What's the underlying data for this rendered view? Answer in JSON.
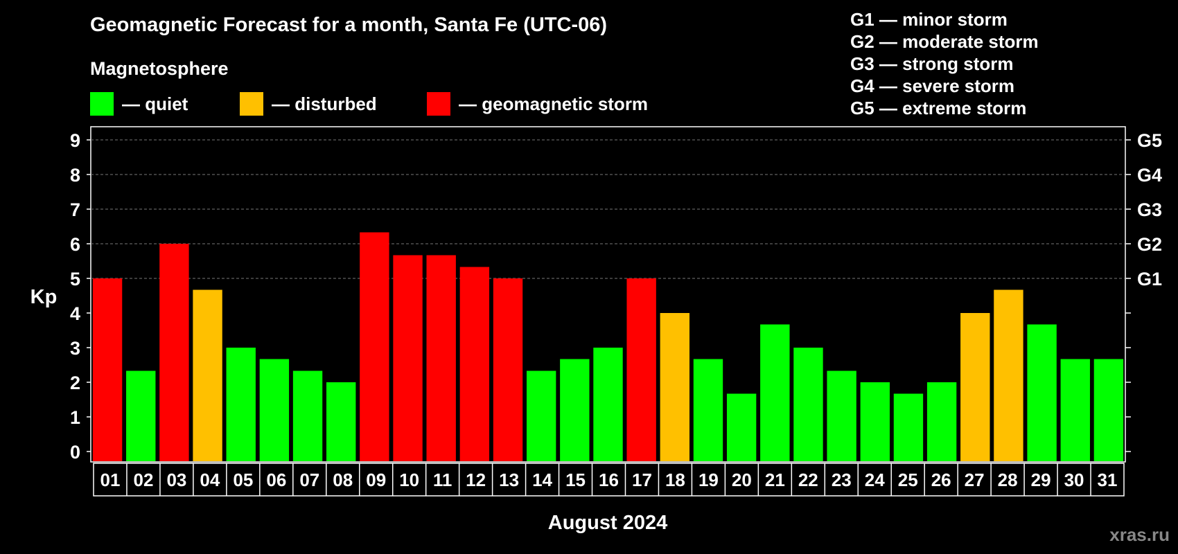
{
  "chart_data": {
    "type": "bar",
    "title": "Geomagnetic Forecast for a month, Santa Fe (UTC-06)",
    "subtitle": "Magnetosphere",
    "legend": [
      {
        "label": "— quiet",
        "color": "#00ff00"
      },
      {
        "label": "— disturbed",
        "color": "#ffc000"
      },
      {
        "label": "— geomagnetic storm",
        "color": "#ff0000"
      }
    ],
    "storm_scale": [
      "G1 — minor storm",
      "G2 — moderate storm",
      "G3 — strong storm",
      "G4 — severe storm",
      "G5 — extreme storm"
    ],
    "ylabel": "Kp",
    "xlabel": "August 2024",
    "ylim": [
      0,
      9
    ],
    "yticks": [
      "0",
      "1",
      "2",
      "3",
      "4",
      "5",
      "6",
      "7",
      "8",
      "9"
    ],
    "right_axis_labels": [
      {
        "value": 5,
        "label": "G1"
      },
      {
        "value": 6,
        "label": "G2"
      },
      {
        "value": 7,
        "label": "G3"
      },
      {
        "value": 8,
        "label": "G4"
      },
      {
        "value": 9,
        "label": "G5"
      }
    ],
    "grid": "horizontal dashed at 5-9",
    "categories": [
      "01",
      "02",
      "03",
      "04",
      "05",
      "06",
      "07",
      "08",
      "09",
      "10",
      "11",
      "12",
      "13",
      "14",
      "15",
      "16",
      "17",
      "18",
      "19",
      "20",
      "21",
      "22",
      "23",
      "24",
      "25",
      "26",
      "27",
      "28",
      "29",
      "30",
      "31"
    ],
    "values": [
      5,
      2.33,
      6,
      4.67,
      3,
      2.67,
      2.33,
      2,
      6.33,
      5.67,
      5.67,
      5.33,
      5,
      2.33,
      2.67,
      3,
      5,
      4,
      2.67,
      1.67,
      3.67,
      3,
      2.33,
      2,
      1.67,
      2,
      4,
      4.67,
      3.67,
      2.67,
      2.67
    ],
    "bar_status": [
      "storm",
      "quiet",
      "storm",
      "disturbed",
      "quiet",
      "quiet",
      "quiet",
      "quiet",
      "storm",
      "storm",
      "storm",
      "storm",
      "storm",
      "quiet",
      "quiet",
      "quiet",
      "storm",
      "disturbed",
      "quiet",
      "quiet",
      "quiet",
      "quiet",
      "quiet",
      "quiet",
      "quiet",
      "quiet",
      "disturbed",
      "disturbed",
      "quiet",
      "quiet",
      "quiet"
    ],
    "colors": {
      "quiet": "#00ff00",
      "disturbed": "#ffc000",
      "storm": "#ff0000"
    }
  },
  "watermark": "xras.ru"
}
